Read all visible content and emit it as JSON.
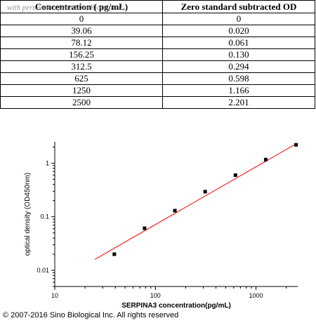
{
  "watermark": "with permission from Sino Biological",
  "table": {
    "headers": [
      "Concentration ( pg/mL)",
      "Zero standard subtracted OD"
    ],
    "rows": [
      [
        "0",
        "0"
      ],
      [
        "39.06",
        "0.020"
      ],
      [
        "78.12",
        "0.061"
      ],
      [
        "156.25",
        "0.130"
      ],
      [
        "312.5",
        "0.294"
      ],
      [
        "625",
        "0.598"
      ],
      [
        "1250",
        "1.166"
      ],
      [
        "2500",
        "2.201"
      ]
    ]
  },
  "copyright": "© 2007-2016 Sino Biological Inc. All rights reserved",
  "chart_data": {
    "type": "scatter",
    "scale": "log-log",
    "xlabel": "SERPINA3  concentration(pg/mL)",
    "ylabel": "optical density (OD450nm)",
    "xlim": [
      10,
      2600
    ],
    "ylim": [
      0.005,
      2.5
    ],
    "x_ticks": [
      10,
      100,
      1000
    ],
    "x_tick_labels": [
      "10",
      "100",
      "1000"
    ],
    "y_ticks": [
      0.01,
      0.1,
      1
    ],
    "y_tick_labels": [
      "0.01",
      "0.1",
      "1"
    ],
    "points": {
      "x": [
        39.06,
        78.12,
        156.25,
        312.5,
        625,
        1250,
        2500
      ],
      "y": [
        0.02,
        0.061,
        0.13,
        0.294,
        0.598,
        1.166,
        2.201
      ]
    },
    "fit_line": {
      "x": [
        25,
        2500
      ],
      "y": [
        0.016,
        2.3
      ],
      "color": "#ff0000"
    },
    "marker_color": "#000000"
  }
}
